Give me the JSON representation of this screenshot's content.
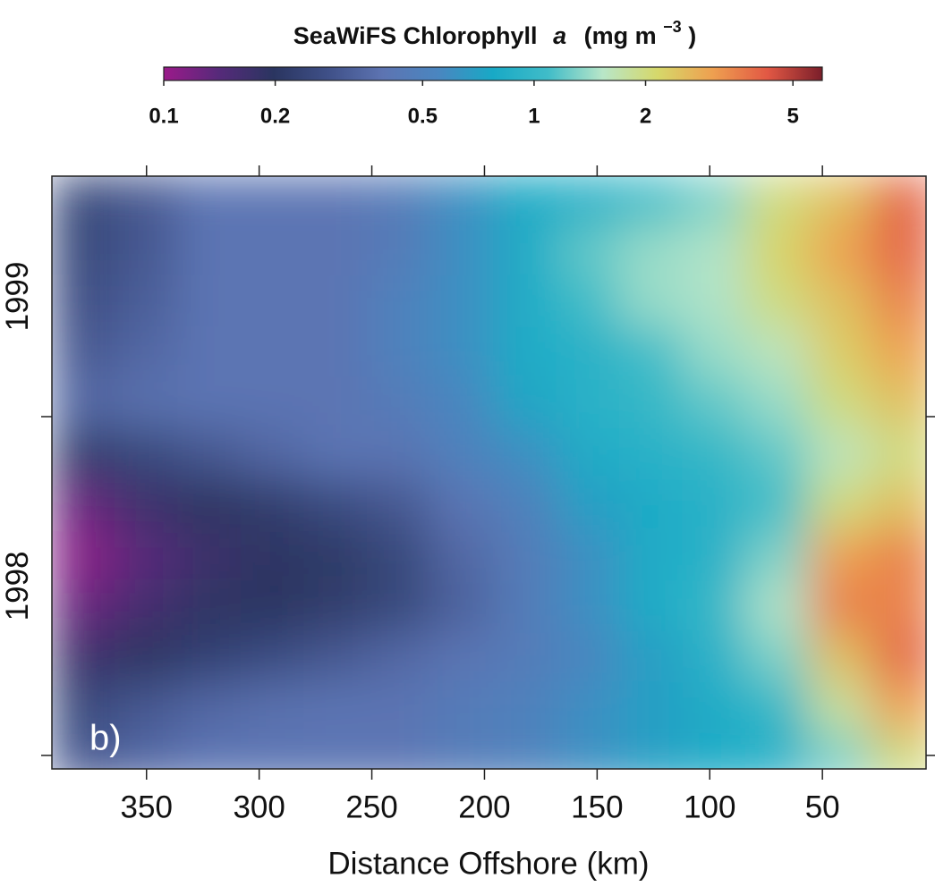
{
  "chart_data": {
    "type": "heatmap",
    "title_parts": [
      "SeaWiFS Chlorophyll",
      "a",
      "(mg m",
      "−3",
      ")"
    ],
    "x_label": "Distance Offshore (km)",
    "panel_label": "b)",
    "xlim": [
      392,
      4
    ],
    "xticks": [
      350,
      300,
      250,
      200,
      150,
      100,
      50
    ],
    "ylim": [
      1997.96,
      1999.71
    ],
    "yticks": [
      1998,
      1999
    ],
    "y_period_labels": [
      "1998",
      "1999"
    ],
    "x": [
      378,
      350,
      322,
      294,
      266,
      238,
      210,
      182,
      154,
      126,
      98,
      70,
      42,
      14
    ],
    "y": [
      1999.64,
      1999.49,
      1999.34,
      1999.19,
      1999.04,
      1998.89,
      1998.74,
      1998.59,
      1998.44,
      1998.29,
      1998.14,
      1997.99
    ],
    "z": [
      [
        0.25,
        0.3,
        0.4,
        0.4,
        0.4,
        0.45,
        0.6,
        0.8,
        0.9,
        1.1,
        1.3,
        2,
        2.5,
        4
      ],
      [
        0.25,
        0.3,
        0.4,
        0.4,
        0.4,
        0.45,
        0.6,
        0.8,
        1.2,
        1.4,
        1.5,
        2.2,
        3,
        4
      ],
      [
        0.27,
        0.32,
        0.4,
        0.4,
        0.4,
        0.5,
        0.6,
        0.8,
        1.1,
        1.4,
        1.5,
        2,
        2.5,
        3.5
      ],
      [
        0.3,
        0.35,
        0.4,
        0.4,
        0.4,
        0.5,
        0.6,
        0.8,
        0.9,
        1.1,
        1.4,
        1.6,
        2.3,
        3
      ],
      [
        0.35,
        0.38,
        0.4,
        0.4,
        0.4,
        0.45,
        0.55,
        0.75,
        0.9,
        1,
        1.2,
        1.4,
        2,
        2.5
      ],
      [
        0.22,
        0.25,
        0.3,
        0.35,
        0.4,
        0.4,
        0.5,
        0.6,
        0.8,
        0.9,
        1,
        1.2,
        1.6,
        2
      ],
      [
        0.13,
        0.17,
        0.2,
        0.22,
        0.26,
        0.3,
        0.4,
        0.5,
        0.7,
        0.8,
        0.9,
        1.1,
        2,
        2.5
      ],
      [
        0.11,
        0.14,
        0.17,
        0.19,
        0.21,
        0.25,
        0.35,
        0.45,
        0.6,
        0.8,
        0.9,
        1.3,
        3,
        3.5
      ],
      [
        0.13,
        0.16,
        0.19,
        0.2,
        0.22,
        0.25,
        0.33,
        0.45,
        0.6,
        0.8,
        1,
        1.5,
        3.5,
        3.5
      ],
      [
        0.17,
        0.2,
        0.23,
        0.26,
        0.3,
        0.35,
        0.4,
        0.45,
        0.55,
        0.7,
        0.9,
        1.3,
        2.5,
        4
      ],
      [
        0.25,
        0.3,
        0.35,
        0.38,
        0.4,
        0.4,
        0.45,
        0.5,
        0.6,
        0.7,
        0.8,
        1,
        1.8,
        3
      ],
      [
        0.3,
        0.35,
        0.4,
        0.4,
        0.4,
        0.4,
        0.45,
        0.5,
        0.6,
        0.7,
        0.8,
        0.9,
        1.3,
        2
      ]
    ],
    "colorbar": {
      "log": true,
      "lim": [
        0.1,
        6
      ],
      "ticks": [
        0.1,
        0.2,
        0.5,
        1,
        2,
        5
      ],
      "colors": [
        "#9b1a8a",
        "#562a7a",
        "#2a3560",
        "#3f5088",
        "#5d74b2",
        "#4a86c0",
        "#18a9c6",
        "#40bcc8",
        "#b8e6c8",
        "#d6d86a",
        "#eea050",
        "#e25844",
        "#7a1e2a"
      ]
    }
  }
}
